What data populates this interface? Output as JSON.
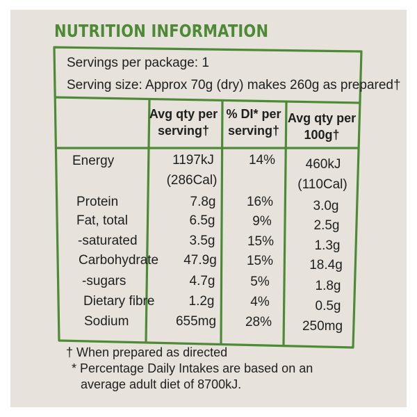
{
  "title": "NUTRITION INFORMATION",
  "servings_per_package": "Servings per package: 1",
  "serving_size": "Serving size: Approx 70g (dry) makes 260g as prepared†",
  "columns": {
    "per_serving": [
      "Avg qty per",
      "serving†"
    ],
    "di": [
      "% DI* per",
      "serving†"
    ],
    "per_100g": [
      "Avg qty per",
      "100g†"
    ]
  },
  "rows": [
    {
      "name": "Energy",
      "per_serving": "1197kJ",
      "per_serving_2": "(286Cal)",
      "di": "14%",
      "per_100g": "460kJ",
      "per_100g_2": "(110Cal)"
    },
    {
      "name": "Protein",
      "per_serving": "7.8g",
      "di": "16%",
      "per_100g": "3.0g"
    },
    {
      "name": "Fat, total",
      "per_serving": "6.5g",
      "di": "9%",
      "per_100g": "2.5g"
    },
    {
      "name": "-saturated",
      "per_serving": "3.5g",
      "di": "15%",
      "per_100g": "1.3g"
    },
    {
      "name": "Carbohydrate",
      "per_serving": "47.9g",
      "di": "15%",
      "per_100g": "18.4g"
    },
    {
      "name": "-sugars",
      "per_serving": "4.7g",
      "di": "5%",
      "per_100g": "1.8g"
    },
    {
      "name": "Dietary fibre",
      "per_serving": "1.2g",
      "di": "4%",
      "per_100g": "0.5g"
    },
    {
      "name": "Sodium",
      "per_serving": "655mg",
      "di": "28%",
      "per_100g": "250mg"
    }
  ],
  "footnotes": [
    "† When prepared as directed",
    "* Percentage Daily Intakes are based on an",
    "average adult diet of 8700kJ."
  ],
  "colors": {
    "accent": "#4d8a35",
    "background": "#e7e3dc",
    "text": "#1e1e1e"
  }
}
